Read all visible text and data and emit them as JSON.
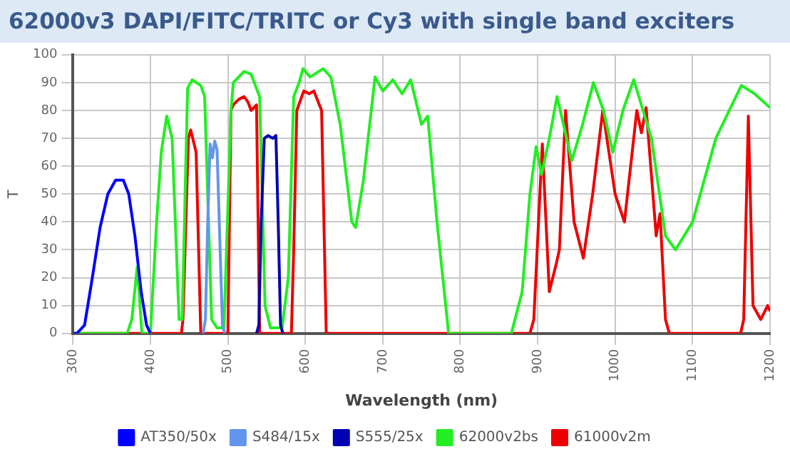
{
  "chart_data": {
    "type": "line",
    "title": "62000v3 DAPI/FITC/TRITC or Cy3 with single band exciters",
    "xlabel": "Wavelength (nm)",
    "ylabel": "T",
    "xlim": [
      300,
      1200
    ],
    "xticks": [
      300,
      400,
      500,
      600,
      700,
      800,
      900,
      1000,
      1100,
      1200
    ],
    "ylim": [
      0,
      100
    ],
    "yticks": [
      0,
      10,
      20,
      30,
      40,
      50,
      60,
      70,
      80,
      90,
      100
    ],
    "grid": true,
    "legend": "bottom",
    "series": [
      {
        "name": "AT350/50x",
        "color": "#0000ff",
        "x": [
          300,
          305,
          315,
          325,
          335,
          345,
          355,
          365,
          372,
          380,
          388,
          395,
          400
        ],
        "values": [
          0,
          0,
          3,
          20,
          38,
          50,
          55,
          55,
          50,
          35,
          15,
          3,
          0
        ]
      },
      {
        "name": "S484/15x",
        "color": "#6495ed",
        "x": [
          468,
          471,
          474,
          477,
          480,
          483,
          486,
          490,
          493,
          496
        ],
        "values": [
          0,
          5,
          40,
          68,
          63,
          69,
          66,
          30,
          3,
          0
        ]
      },
      {
        "name": "S555/25x",
        "color": "#0000b4",
        "x": [
          537,
          540,
          543,
          547,
          552,
          558,
          562,
          565,
          568,
          571
        ],
        "values": [
          0,
          3,
          40,
          70,
          71,
          70,
          71,
          40,
          3,
          0
        ]
      },
      {
        "name": "62000v2bs",
        "color": "#22ee22",
        "x": [
          300,
          370,
          376,
          383,
          389,
          400,
          408,
          414,
          421,
          428,
          437,
          441,
          448,
          454,
          465,
          470,
          479,
          486,
          495,
          504,
          507,
          521,
          530,
          541,
          548,
          555,
          570,
          578,
          585,
          592,
          597,
          606,
          623,
          633,
          645,
          660,
          665,
          675,
          690,
          700,
          713,
          725,
          736,
          750,
          758,
          770,
          785,
          800,
          866,
          880,
          890,
          898,
          905,
          915,
          925,
          944,
          958,
          972,
          985,
          997,
          1010,
          1024,
          1047,
          1065,
          1078,
          1100,
          1130,
          1163,
          1180,
          1200
        ],
        "values": [
          0,
          0,
          5,
          24,
          0,
          0,
          40,
          65,
          78,
          70,
          5,
          5,
          88,
          91,
          89,
          85,
          5,
          2,
          2,
          80,
          90,
          94,
          93,
          85,
          10,
          2,
          2,
          20,
          85,
          90,
          95,
          92,
          95,
          92,
          75,
          40,
          38,
          55,
          92,
          87,
          91,
          86,
          91,
          75,
          78,
          40,
          0,
          0,
          0,
          15,
          50,
          67,
          57,
          70,
          85,
          62,
          75,
          90,
          80,
          65,
          80,
          91,
          70,
          35,
          30,
          40,
          70,
          89,
          86,
          81
        ]
      },
      {
        "name": "61000v2m",
        "color": "#ee0000",
        "x": [
          300,
          440,
          442,
          449,
          452,
          459,
          465,
          500,
          504,
          507,
          514,
          521,
          526,
          530,
          537,
          541,
          582,
          585,
          589,
          598,
          605,
          611,
          621,
          627,
          890,
          895,
          906,
          915,
          924,
          928,
          936,
          947,
          959,
          971,
          984,
          1000,
          1012,
          1028,
          1034,
          1040,
          1053,
          1058,
          1065,
          1070,
          1162,
          1166,
          1172,
          1178,
          1188,
          1197,
          1200
        ],
        "values": [
          0,
          0,
          5,
          70,
          73,
          65,
          0,
          0,
          80,
          82,
          84,
          85,
          83,
          80,
          82,
          0,
          0,
          30,
          80,
          87,
          86,
          87,
          80,
          0,
          0,
          5,
          68,
          15,
          25,
          30,
          80,
          40,
          27,
          50,
          80,
          50,
          40,
          80,
          72,
          81,
          35,
          43,
          5,
          0,
          0,
          5,
          78,
          10,
          5,
          10,
          8
        ]
      }
    ]
  }
}
